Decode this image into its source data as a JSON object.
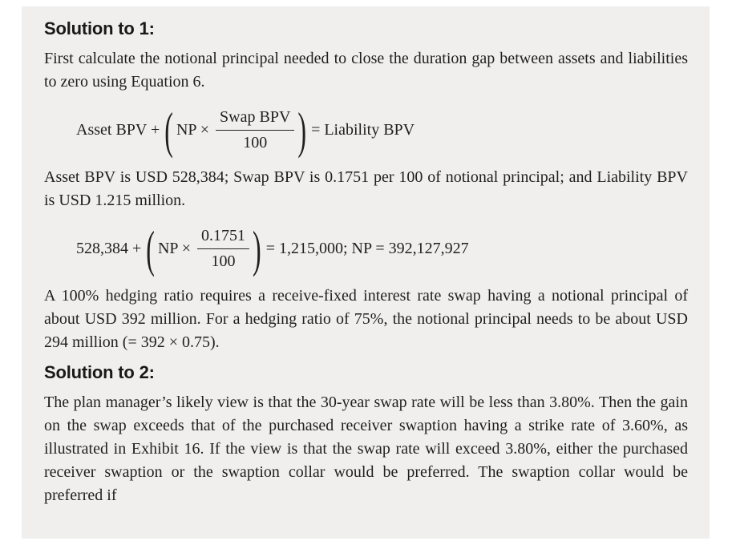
{
  "page": {
    "background_color": "#ffffff",
    "box_background_color": "#f0efed",
    "text_color": "#211f1e"
  },
  "solution1": {
    "heading": "Solution to 1:",
    "intro": "First calculate the notional principal needed to close the duration gap between assets and liabilities to zero using Equation 6.",
    "equation1": {
      "lhs": "Asset BPV +",
      "open_paren": "(",
      "inner_left": "NP ×",
      "numerator": "Swap BPV",
      "denominator": "100",
      "close_paren": ")",
      "rhs": "= Liability BPV"
    },
    "values_text": "Asset BPV is USD 528,384; Swap BPV is 0.1751 per 100 of notional principal; and Liability BPV is USD 1.215 million.",
    "equation2": {
      "lhs": "528,384 +",
      "open_paren": "(",
      "inner_left": "NP ×",
      "numerator": "0.1751",
      "denominator": "100",
      "close_paren": ")",
      "rhs": "= 1,215,000; NP = 392,127,927"
    },
    "conclusion": "A 100% hedging ratio requires a receive-fixed interest rate swap having a notional principal of about USD 392 million. For a hedging ratio of 75%, the notional principal needs to be about USD 294 million (= 392 × 0.75)."
  },
  "solution2": {
    "heading": "Solution to 2:",
    "body": "The plan manager’s likely view is that the 30-year swap rate will be less than 3.80%. Then the gain on the swap exceeds that of the purchased receiver swaption having a strike rate of 3.60%, as illustrated in Exhibit 16. If the view is that the swap rate will exceed 3.80%, either the purchased receiver swaption or the swaption collar would be preferred. The swaption collar would be preferred if"
  }
}
